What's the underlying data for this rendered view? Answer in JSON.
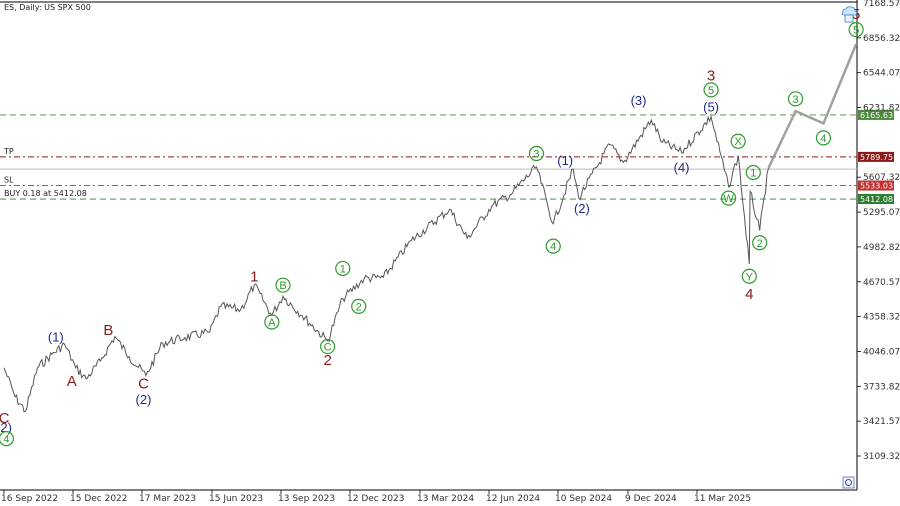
{
  "header": {
    "symbol_line": "ES, Daily:  US SPX 500"
  },
  "chart_data": {
    "type": "line",
    "title": "ES, Daily:  US SPX 500",
    "xlabel": "",
    "ylabel": "",
    "ylim": [
      2900,
      7168.57
    ],
    "x_ticks": [
      "16 Sep 2022",
      "15 Dec 2022",
      "17 Mar 2023",
      "15 Jun 2023",
      "13 Sep 2023",
      "12 Dec 2023",
      "13 Mar 2024",
      "12 Jun 2024",
      "10 Sep 2024",
      "9 Dec 2024",
      "11 Mar 2025"
    ],
    "y_ticks": [
      7168.57,
      6856.32,
      6544.07,
      6231.82,
      5607.32,
      5295.07,
      4982.82,
      4670.57,
      4358.32,
      4046.07,
      3733.82,
      3421.57,
      3109.32
    ],
    "price_series": {
      "name": "ES",
      "points": [
        [
          "2022-09-16",
          3900
        ],
        [
          "2022-09-30",
          3640
        ],
        [
          "2022-10-13",
          3510
        ],
        [
          "2022-10-28",
          3900
        ],
        [
          "2022-11-15",
          4020
        ],
        [
          "2022-12-01",
          4110
        ],
        [
          "2022-12-15",
          3900
        ],
        [
          "2022-12-28",
          3800
        ],
        [
          "2023-01-15",
          3960
        ],
        [
          "2023-02-02",
          4180
        ],
        [
          "2023-02-20",
          4000
        ],
        [
          "2023-03-13",
          3830
        ],
        [
          "2023-04-03",
          4120
        ],
        [
          "2023-05-01",
          4170
        ],
        [
          "2023-06-01",
          4220
        ],
        [
          "2023-06-15",
          4450
        ],
        [
          "2023-07-10",
          4420
        ],
        [
          "2023-07-27",
          4640
        ],
        [
          "2023-08-18",
          4370
        ],
        [
          "2023-09-01",
          4540
        ],
        [
          "2023-09-25",
          4370
        ],
        [
          "2023-10-27",
          4140
        ],
        [
          "2023-11-15",
          4520
        ],
        [
          "2023-12-12",
          4700
        ],
        [
          "2024-01-05",
          4710
        ],
        [
          "2024-02-09",
          5040
        ],
        [
          "2024-03-28",
          5320
        ],
        [
          "2024-04-19",
          5060
        ],
        [
          "2024-05-20",
          5350
        ],
        [
          "2024-06-12",
          5450
        ],
        [
          "2024-07-15",
          5700
        ],
        [
          "2024-08-05",
          5190
        ],
        [
          "2024-08-30",
          5680
        ],
        [
          "2024-09-06",
          5420
        ],
        [
          "2024-10-15",
          5900
        ],
        [
          "2024-11-01",
          5740
        ],
        [
          "2024-12-06",
          6120
        ],
        [
          "2024-12-20",
          5920
        ],
        [
          "2025-01-13",
          5830
        ],
        [
          "2025-02-19",
          6150
        ],
        [
          "2025-03-13",
          5520
        ],
        [
          "2025-03-25",
          5800
        ],
        [
          "2025-04-08",
          4830
        ],
        [
          "2025-04-09",
          5480
        ],
        [
          "2025-04-21",
          5130
        ],
        [
          "2025-05-02",
          5690
        ]
      ]
    },
    "projection": {
      "points": [
        [
          "2025-05-02",
          5690
        ],
        [
          "2025-06-05",
          6200
        ],
        [
          "2025-07-10",
          6090
        ],
        [
          "2025-08-20",
          6800
        ]
      ]
    },
    "levels": [
      {
        "label_left": "",
        "price": 6165.63,
        "value_text": "6165.63",
        "color": "#4a8a3a",
        "style": "dash"
      },
      {
        "label_left": "TP",
        "price": 5789.75,
        "value_text": "5789.75",
        "color": "#8b1a1a",
        "style": "dashdot"
      },
      {
        "label_left": "",
        "price": 5680,
        "value_text": "",
        "color": "#bbbbbb",
        "style": "solid"
      },
      {
        "label_left": "SL",
        "price": 5533.03,
        "value_text": "5533.03",
        "color": "#c03030",
        "style": "dashdot"
      },
      {
        "label_left": "BUY 0.18 at 5412.08",
        "price": 5412.08,
        "value_text": "5412.08",
        "color": "#2e7d32",
        "style": "dash"
      }
    ],
    "wave_labels": [
      {
        "text": "C",
        "date": "2022-09-16",
        "price": 3450,
        "style": "dark-red"
      },
      {
        "text": "(2)",
        "date": "2022-09-16",
        "price": 3370,
        "style": "navy-paren"
      },
      {
        "text": "4",
        "date": "2022-09-19",
        "price": 3265,
        "style": "green-circle"
      },
      {
        "text": "(1)",
        "date": "2022-11-20",
        "price": 4180,
        "style": "navy-paren"
      },
      {
        "text": "A",
        "date": "2022-12-10",
        "price": 3780,
        "style": "dark-red"
      },
      {
        "text": "B",
        "date": "2023-01-25",
        "price": 4240,
        "style": "dark-red"
      },
      {
        "text": "C",
        "date": "2023-03-10",
        "price": 3760,
        "style": "dark-red"
      },
      {
        "text": "(2)",
        "date": "2023-03-10",
        "price": 3620,
        "style": "navy-paren"
      },
      {
        "text": "1",
        "date": "2023-07-27",
        "price": 4720,
        "style": "dark-red"
      },
      {
        "text": "A",
        "date": "2023-08-18",
        "price": 4310,
        "style": "green-circle"
      },
      {
        "text": "B",
        "date": "2023-09-01",
        "price": 4640,
        "style": "green-circle"
      },
      {
        "text": "C",
        "date": "2023-10-27",
        "price": 4090,
        "style": "green-circle"
      },
      {
        "text": "2",
        "date": "2023-10-27",
        "price": 3970,
        "style": "dark-red"
      },
      {
        "text": "1",
        "date": "2023-11-15",
        "price": 4790,
        "style": "green-circle"
      },
      {
        "text": "2",
        "date": "2023-12-05",
        "price": 4450,
        "style": "green-circle"
      },
      {
        "text": "3",
        "date": "2024-07-15",
        "price": 5820,
        "style": "green-circle"
      },
      {
        "text": "4",
        "date": "2024-08-05",
        "price": 4990,
        "style": "green-circle"
      },
      {
        "text": "(1)",
        "date": "2024-08-20",
        "price": 5760,
        "style": "navy-paren"
      },
      {
        "text": "(2)",
        "date": "2024-09-10",
        "price": 5330,
        "style": "navy-paren"
      },
      {
        "text": "(3)",
        "date": "2024-11-20",
        "price": 6300,
        "style": "navy-paren"
      },
      {
        "text": "(4)",
        "date": "2025-01-13",
        "price": 5700,
        "style": "navy-paren"
      },
      {
        "text": "3",
        "date": "2025-02-19",
        "price": 6520,
        "style": "dark-red"
      },
      {
        "text": "5",
        "date": "2025-02-19",
        "price": 6390,
        "style": "green-circle"
      },
      {
        "text": "(5)",
        "date": "2025-02-19",
        "price": 6240,
        "style": "navy-paren"
      },
      {
        "text": "X",
        "date": "2025-03-25",
        "price": 5930,
        "style": "green-circle"
      },
      {
        "text": "W",
        "date": "2025-03-13",
        "price": 5420,
        "style": "green-circle"
      },
      {
        "text": "1",
        "date": "2025-04-13",
        "price": 5650,
        "style": "green-circle"
      },
      {
        "text": "2",
        "date": "2025-04-21",
        "price": 5020,
        "style": "green-circle"
      },
      {
        "text": "Y",
        "date": "2025-04-08",
        "price": 4720,
        "style": "green-circle"
      },
      {
        "text": "4",
        "date": "2025-04-08",
        "price": 4560,
        "style": "dark-red"
      },
      {
        "text": "3",
        "date": "2025-06-05",
        "price": 6310,
        "style": "green-circle"
      },
      {
        "text": "4",
        "date": "2025-07-10",
        "price": 5960,
        "style": "green-circle"
      },
      {
        "text": "5",
        "date": "2025-08-20",
        "price": 6930,
        "style": "green-circle"
      },
      {
        "text": "5",
        "date": "2025-08-20",
        "price": 7070,
        "style": "dark-red"
      }
    ],
    "grid": false,
    "colors": {
      "price": "#555555",
      "projection": "#a0a0a0",
      "navy": "#1f2a8a",
      "darkred": "#8b1a1a",
      "green": "#2e9a2e"
    }
  }
}
